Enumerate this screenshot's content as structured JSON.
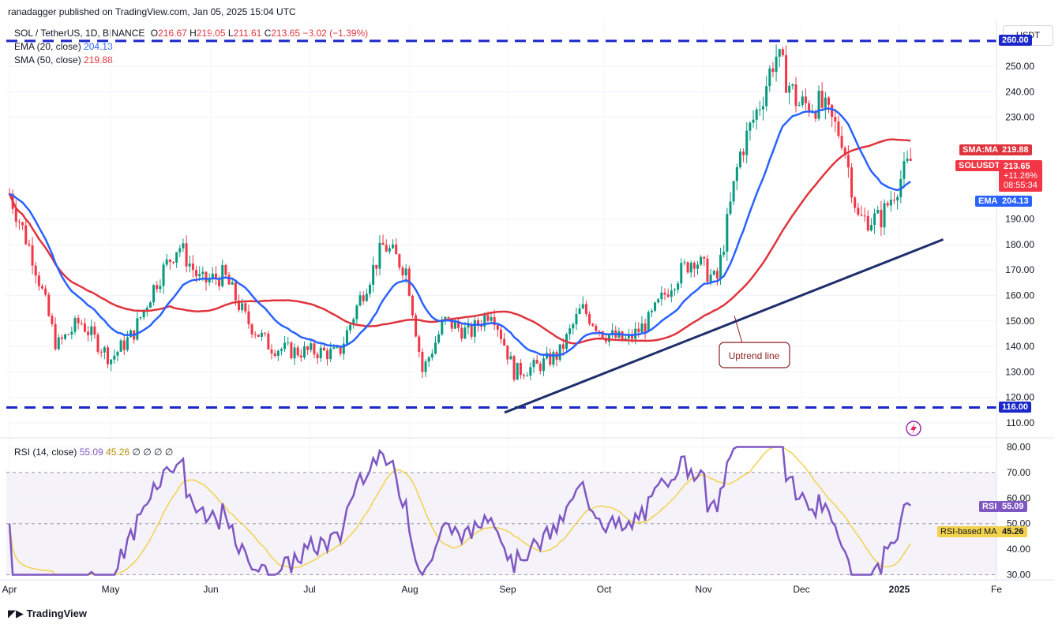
{
  "header": {
    "publisher_line": "ranadagger published on TradingView.com, Jan 05, 2025 15:04 UTC"
  },
  "legend": {
    "symbol": "SOL / TetherUS, 1D, BINANCE",
    "o_label": "O",
    "o_value": "216.67",
    "h_label": "H",
    "h_value": "219.05",
    "l_label": "L",
    "l_value": "211.61",
    "c_label": "C",
    "c_value": "213.65",
    "change": "−3.02 (−1.39%)",
    "ema_label": "EMA (20, close)",
    "ema_value": "204.13",
    "sma_label": "SMA (50, close)",
    "sma_value": "219.88",
    "rsi_label": "RSI (14, close)",
    "rsi_value": "55.09",
    "rsi_ma_value": "45.26",
    "rsi_extra": "∅ ∅ ∅ ∅"
  },
  "currency": "USDT",
  "footer": {
    "brand": "TradingView"
  },
  "colors": {
    "candle_up": "#089981",
    "candle_down": "#f23645",
    "ema": "#2962ff",
    "sma": "#e0343d",
    "rsi": "#7e57c2",
    "rsi_ma": "#f2d24c",
    "hline": "#1a27c9",
    "trend": "#1e2f6b"
  },
  "chart_data": [
    {
      "type": "candlestick",
      "title": "SOL / TetherUS, 1D, BINANCE",
      "ylim": [
        105,
        268
      ],
      "y_ticks": [
        110,
        120,
        130,
        140,
        150,
        160,
        170,
        180,
        190,
        230,
        240,
        250
      ],
      "x_ticks": [
        "Apr",
        "May",
        "Jun",
        "Jul",
        "Aug",
        "Sep",
        "Oct",
        "Nov",
        "Dec",
        "2025",
        "Fe"
      ],
      "horizontal_levels": [
        {
          "value": 260,
          "label": "260.00"
        },
        {
          "value": 116,
          "label": "116.00"
        }
      ],
      "trend_line": {
        "from": [
          "Aug 31",
          114
        ],
        "to": [
          "Jan 15",
          182
        ]
      },
      "annotation": "Uptrend line",
      "close_series": [
        {
          "t": "Apr 1",
          "v": 200
        },
        {
          "t": "Apr 8",
          "v": 175
        },
        {
          "t": "Apr 15",
          "v": 140
        },
        {
          "t": "Apr 22",
          "v": 150
        },
        {
          "t": "May 1",
          "v": 135
        },
        {
          "t": "May 8",
          "v": 145
        },
        {
          "t": "May 15",
          "v": 165
        },
        {
          "t": "May 22",
          "v": 180
        },
        {
          "t": "May 29",
          "v": 165
        },
        {
          "t": "Jun 5",
          "v": 168
        },
        {
          "t": "Jun 12",
          "v": 150
        },
        {
          "t": "Jun 19",
          "v": 140
        },
        {
          "t": "Jun 26",
          "v": 138
        },
        {
          "t": "Jul 3",
          "v": 138
        },
        {
          "t": "Jul 10",
          "v": 137
        },
        {
          "t": "Jul 17",
          "v": 160
        },
        {
          "t": "Jul 24",
          "v": 180
        },
        {
          "t": "Jul 31",
          "v": 170
        },
        {
          "t": "Aug 5",
          "v": 130
        },
        {
          "t": "Aug 12",
          "v": 150
        },
        {
          "t": "Aug 20",
          "v": 145
        },
        {
          "t": "Aug 27",
          "v": 155
        },
        {
          "t": "Sep 3",
          "v": 130
        },
        {
          "t": "Sep 10",
          "v": 132
        },
        {
          "t": "Sep 17",
          "v": 137
        },
        {
          "t": "Sep 24",
          "v": 155
        },
        {
          "t": "Oct 1",
          "v": 145
        },
        {
          "t": "Oct 8",
          "v": 142
        },
        {
          "t": "Oct 15",
          "v": 150
        },
        {
          "t": "Oct 22",
          "v": 165
        },
        {
          "t": "Oct 29",
          "v": 175
        },
        {
          "t": "Nov 5",
          "v": 165
        },
        {
          "t": "Nov 12",
          "v": 215
        },
        {
          "t": "Nov 19",
          "v": 238
        },
        {
          "t": "Nov 23",
          "v": 255
        },
        {
          "t": "Nov 30",
          "v": 235
        },
        {
          "t": "Dec 7",
          "v": 235
        },
        {
          "t": "Dec 14",
          "v": 222
        },
        {
          "t": "Dec 19",
          "v": 190
        },
        {
          "t": "Dec 26",
          "v": 190
        },
        {
          "t": "Jan 1",
          "v": 205
        },
        {
          "t": "Jan 5",
          "v": 213.65
        }
      ],
      "series": [
        {
          "name": "SOLUSDT",
          "last": 213.65,
          "label": "SOLUSDT",
          "change": "+11.26%",
          "countdown": "08:55:34"
        },
        {
          "name": "SMA:MA",
          "last": 219.88,
          "label": "SMA:MA"
        },
        {
          "name": "EMA",
          "last": 204.13,
          "label": "EMA"
        }
      ]
    },
    {
      "type": "line",
      "title": "RSI (14, close)",
      "ylim": [
        28,
        82
      ],
      "y_ticks": [
        30,
        40,
        50,
        60,
        70,
        80
      ],
      "band": [
        30,
        70
      ],
      "series": [
        {
          "name": "RSI",
          "last": 55.09,
          "label": "RSI"
        },
        {
          "name": "RSI-based MA",
          "last": 45.26,
          "label": "RSI-based MA"
        }
      ]
    }
  ]
}
